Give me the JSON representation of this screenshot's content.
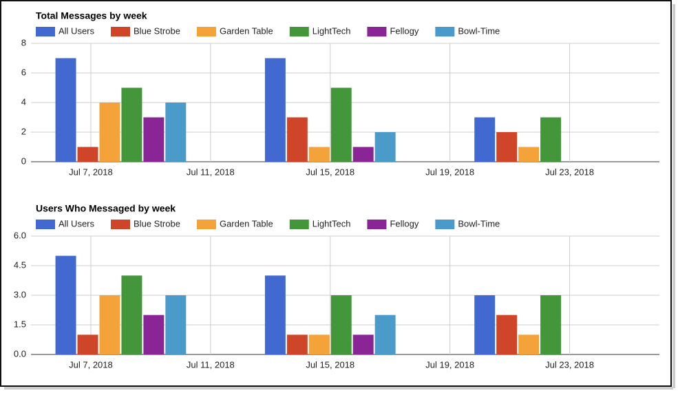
{
  "chart_data": [
    {
      "type": "bar",
      "title": "Total Messages by week",
      "x": [
        "2018-07-08",
        "2018-07-15",
        "2018-07-22"
      ],
      "series": [
        {
          "name": "All Users",
          "color": "#4169cf",
          "values": [
            7,
            7,
            3
          ]
        },
        {
          "name": "Blue Strobe",
          "color": "#cf4529",
          "values": [
            1,
            3,
            2
          ]
        },
        {
          "name": "Garden Table",
          "color": "#f3a33a",
          "values": [
            4,
            1,
            1
          ]
        },
        {
          "name": "LightTech",
          "color": "#43973a",
          "values": [
            5,
            5,
            3
          ]
        },
        {
          "name": "Fellogy",
          "color": "#8a2596",
          "values": [
            3,
            1,
            0
          ]
        },
        {
          "name": "Bowl-Time",
          "color": "#4a9bc9",
          "values": [
            4,
            2,
            0
          ]
        }
      ],
      "xlim": [
        "2018-07-05",
        "2018-07-26"
      ],
      "xticks": [
        {
          "value": "2018-07-07",
          "label": "Jul 7, 2018"
        },
        {
          "value": "2018-07-11",
          "label": "Jul 11, 2018"
        },
        {
          "value": "2018-07-15",
          "label": "Jul 15, 2018"
        },
        {
          "value": "2018-07-19",
          "label": "Jul 19, 2018"
        },
        {
          "value": "2018-07-23",
          "label": "Jul 23, 2018"
        }
      ],
      "ylim": [
        0,
        8
      ],
      "yticks": [
        0,
        2,
        4,
        6,
        8
      ],
      "grid": true,
      "legend": "top"
    },
    {
      "type": "bar",
      "title": "Users Who Messaged by week",
      "x": [
        "2018-07-08",
        "2018-07-15",
        "2018-07-22"
      ],
      "series": [
        {
          "name": "All Users",
          "color": "#4169cf",
          "values": [
            5,
            4,
            3
          ]
        },
        {
          "name": "Blue Strobe",
          "color": "#cf4529",
          "values": [
            1,
            1,
            2
          ]
        },
        {
          "name": "Garden Table",
          "color": "#f3a33a",
          "values": [
            3,
            1,
            1
          ]
        },
        {
          "name": "LightTech",
          "color": "#43973a",
          "values": [
            4,
            3,
            3
          ]
        },
        {
          "name": "Fellogy",
          "color": "#8a2596",
          "values": [
            2,
            1,
            0
          ]
        },
        {
          "name": "Bowl-Time",
          "color": "#4a9bc9",
          "values": [
            3,
            2,
            0
          ]
        }
      ],
      "xlim": [
        "2018-07-05",
        "2018-07-26"
      ],
      "xticks": [
        {
          "value": "2018-07-07",
          "label": "Jul 7, 2018"
        },
        {
          "value": "2018-07-11",
          "label": "Jul 11, 2018"
        },
        {
          "value": "2018-07-15",
          "label": "Jul 15, 2018"
        },
        {
          "value": "2018-07-19",
          "label": "Jul 19, 2018"
        },
        {
          "value": "2018-07-23",
          "label": "Jul 23, 2018"
        }
      ],
      "ylim": [
        0,
        6
      ],
      "yticks": [
        {
          "value": 0,
          "label": "0.0"
        },
        1.5,
        {
          "value": 3,
          "label": "3.0"
        },
        4.5,
        {
          "value": 6,
          "label": "6.0"
        }
      ],
      "grid": true,
      "legend": "top"
    }
  ]
}
